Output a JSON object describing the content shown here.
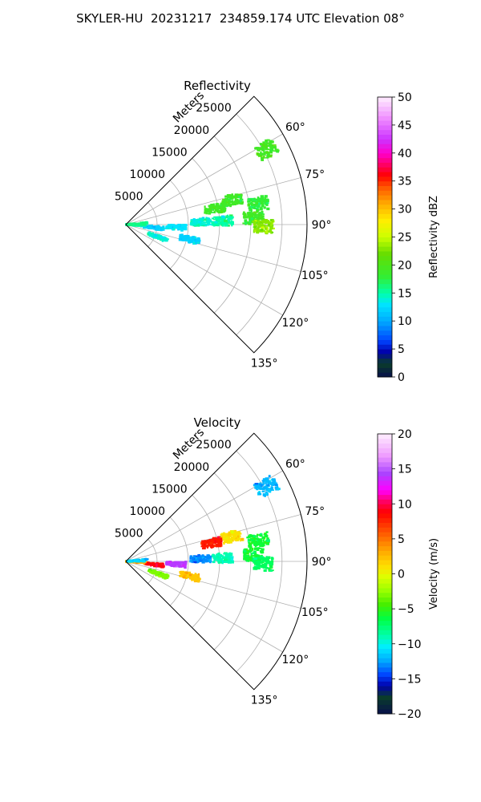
{
  "figure_title": "SKYLER-HU  20231217  234859.174 UTC Elevation 08°",
  "chart_data": [
    {
      "type": "polar_sector",
      "title": "Reflectivity",
      "radial_label": "Meters",
      "radial_ticks": [
        "5000",
        "10000",
        "15000",
        "20000",
        "25000"
      ],
      "radial_values": [
        5000,
        10000,
        15000,
        20000,
        25000
      ],
      "r_max": 29000,
      "azimuth_range": [
        45,
        135
      ],
      "azimuth_ticks": [
        "60°",
        "75°",
        "90°",
        "105°",
        "120°",
        "135°"
      ],
      "azimuth_values": [
        60,
        75,
        90,
        105,
        120,
        135
      ],
      "grid": true,
      "colorbar": {
        "label": "Reflectivity dBZ",
        "range": [
          0,
          50
        ],
        "ticks": [
          "0",
          "5",
          "10",
          "15",
          "20",
          "25",
          "30",
          "35",
          "40",
          "45",
          "50"
        ],
        "tick_values": [
          0,
          5,
          10,
          15,
          20,
          25,
          30,
          35,
          40,
          45,
          50
        ]
      },
      "echoes": [
        {
          "az": 81,
          "r": 21500,
          "value": 18
        },
        {
          "az": 77,
          "r": 17500,
          "value": 19
        },
        {
          "az": 80,
          "r": 14500,
          "value": 19
        },
        {
          "az": 62,
          "r": 25500,
          "value": 19
        },
        {
          "az": 87,
          "r": 20500,
          "value": 19
        },
        {
          "az": 91,
          "r": 22000,
          "value": 23
        },
        {
          "az": 88,
          "r": 15500,
          "value": 15
        },
        {
          "az": 96,
          "r": 4500,
          "value": 12
        },
        {
          "az": 111,
          "r": 5500,
          "value": 14
        },
        {
          "az": 93,
          "r": 8000,
          "value": 13
        },
        {
          "az": 88,
          "r": 12000,
          "value": 14
        },
        {
          "az": 103,
          "r": 10500,
          "value": 12
        },
        {
          "az": 92,
          "r": 1500,
          "value": 15
        },
        {
          "az": 87,
          "r": 1800,
          "value": 16
        }
      ]
    },
    {
      "type": "polar_sector",
      "title": "Velocity",
      "radial_label": "Meters",
      "radial_ticks": [
        "5000",
        "10000",
        "15000",
        "20000",
        "25000"
      ],
      "radial_values": [
        5000,
        10000,
        15000,
        20000,
        25000
      ],
      "r_max": 29000,
      "azimuth_range": [
        45,
        135
      ],
      "azimuth_ticks": [
        "60°",
        "75°",
        "90°",
        "105°",
        "120°",
        "135°"
      ],
      "azimuth_values": [
        60,
        75,
        90,
        105,
        120,
        135
      ],
      "grid": true,
      "colorbar": {
        "label": "Velocity (m/s)",
        "range": [
          -20,
          20
        ],
        "ticks": [
          "−20",
          "−15",
          "−10",
          "−5",
          "0",
          "5",
          "10",
          "15",
          "20"
        ],
        "tick_values": [
          -20,
          -15,
          -10,
          -5,
          0,
          5,
          10,
          15,
          20
        ]
      },
      "echoes": [
        {
          "az": 81,
          "r": 21500,
          "value": -6
        },
        {
          "az": 77,
          "r": 17500,
          "value": 1
        },
        {
          "az": 78,
          "r": 14000,
          "value": 8
        },
        {
          "az": 62,
          "r": 25500,
          "value": -12
        },
        {
          "az": 87,
          "r": 20500,
          "value": -6
        },
        {
          "az": 91,
          "r": 22000,
          "value": -7
        },
        {
          "az": 88,
          "r": 15500,
          "value": -9
        },
        {
          "az": 96,
          "r": 4500,
          "value": 9
        },
        {
          "az": 111,
          "r": 5500,
          "value": -3
        },
        {
          "az": 93,
          "r": 8000,
          "value": 14
        },
        {
          "az": 88,
          "r": 12000,
          "value": -13
        },
        {
          "az": 103,
          "r": 10500,
          "value": 2
        },
        {
          "az": 92,
          "r": 1500,
          "value": 3
        },
        {
          "az": 86,
          "r": 1800,
          "value": -11
        }
      ]
    }
  ]
}
